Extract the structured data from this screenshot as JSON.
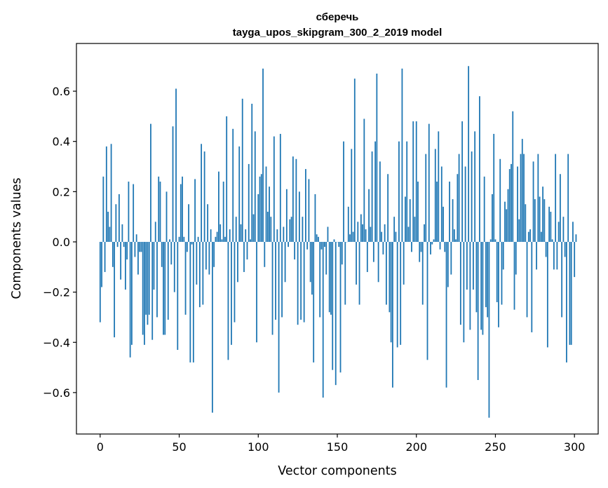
{
  "chart_data": {
    "type": "bar",
    "title": "сберечь",
    "subtitle": "tayga_upos_skipgram_300_2_2019 model",
    "xlabel": "Vector components",
    "ylabel": "Components values",
    "xlim": [
      -15,
      315
    ],
    "ylim": [
      -0.765,
      0.79
    ],
    "xticks": [
      0,
      50,
      100,
      150,
      200,
      250,
      300
    ],
    "yticks": [
      -0.6,
      -0.4,
      -0.2,
      0.0,
      0.2,
      0.4,
      0.6
    ],
    "ytick_labels": [
      "−0.6",
      "−0.4",
      "−0.2",
      "0.0",
      "0.2",
      "0.4",
      "0.6"
    ],
    "grid": false,
    "bar_color": "#1f77b4",
    "values": [
      -0.32,
      -0.18,
      0.26,
      -0.12,
      0.38,
      0.12,
      0.06,
      0.39,
      -0.1,
      -0.38,
      0.15,
      -0.02,
      0.19,
      -0.15,
      0.07,
      -0.02,
      -0.19,
      -0.07,
      0.24,
      -0.46,
      -0.41,
      0.23,
      -0.06,
      0.03,
      -0.13,
      -0.04,
      -0.04,
      -0.37,
      -0.41,
      -0.29,
      -0.33,
      -0.29,
      0.47,
      -0.39,
      -0.19,
      0.08,
      -0.3,
      0.26,
      0.24,
      -0.1,
      -0.37,
      -0.37,
      0.2,
      -0.31,
      0.01,
      -0.09,
      0.46,
      -0.2,
      0.61,
      -0.43,
      0.02,
      0.23,
      0.26,
      0.02,
      -0.29,
      -0.04,
      0.15,
      -0.48,
      -0.01,
      -0.48,
      0.25,
      -0.17,
      0.02,
      -0.26,
      0.39,
      -0.25,
      0.36,
      -0.11,
      0.15,
      -0.13,
      0.05,
      -0.68,
      -0.1,
      0.02,
      0.04,
      0.28,
      0.07,
      0.01,
      0.24,
      0.02,
      0.5,
      -0.47,
      0.05,
      -0.41,
      0.45,
      -0.32,
      0.1,
      -0.16,
      0.38,
      0.07,
      0.57,
      -0.12,
      0.05,
      -0.07,
      0.31,
      0.01,
      0.55,
      0.11,
      0.44,
      -0.4,
      0.19,
      0.26,
      0.27,
      0.69,
      -0.1,
      0.3,
      0.12,
      0.22,
      0.1,
      -0.37,
      0.42,
      -0.31,
      0.05,
      -0.6,
      0.43,
      -0.3,
      0.06,
      -0.16,
      0.21,
      -0.02,
      0.09,
      0.1,
      0.34,
      -0.07,
      0.33,
      -0.33,
      0.2,
      -0.31,
      0.1,
      -0.32,
      0.29,
      -0.03,
      0.25,
      -0.16,
      -0.21,
      -0.48,
      0.19,
      0.03,
      0.02,
      -0.3,
      -0.03,
      -0.62,
      -0.02,
      -0.13,
      0.06,
      -0.28,
      -0.29,
      -0.51,
      0.01,
      -0.57,
      0.0,
      -0.02,
      -0.52,
      -0.09,
      0.4,
      -0.25,
      0.0,
      0.14,
      0.03,
      0.37,
      0.04,
      0.65,
      -0.17,
      0.08,
      -0.25,
      0.11,
      0.07,
      0.49,
      0.05,
      -0.12,
      0.21,
      0.06,
      0.36,
      -0.08,
      0.4,
      0.67,
      -0.16,
      0.32,
      0.04,
      -0.05,
      0.07,
      -0.25,
      0.27,
      -0.28,
      -0.4,
      -0.58,
      0.1,
      0.04,
      -0.42,
      0.4,
      -0.41,
      0.69,
      -0.17,
      0.18,
      0.4,
      0.06,
      0.17,
      -0.04,
      0.48,
      0.1,
      0.48,
      0.24,
      -0.08,
      -0.04,
      -0.25,
      0.07,
      0.35,
      -0.47,
      0.47,
      -0.05,
      -0.01,
      0.01,
      0.37,
      0.24,
      0.44,
      -0.03,
      0.3,
      0.14,
      -0.04,
      -0.58,
      -0.18,
      0.24,
      -0.13,
      0.17,
      0.05,
      0.01,
      0.27,
      0.35,
      -0.33,
      0.48,
      -0.4,
      0.3,
      -0.19,
      0.7,
      -0.35,
      0.36,
      -0.19,
      0.44,
      -0.28,
      -0.55,
      0.58,
      -0.35,
      -0.37,
      0.26,
      -0.26,
      -0.3,
      -0.7,
      0.01,
      0.19,
      0.43,
      0.01,
      -0.24,
      -0.34,
      0.33,
      -0.25,
      -0.11,
      0.16,
      0.13,
      0.21,
      0.29,
      0.31,
      0.52,
      -0.27,
      -0.13,
      0.3,
      0.09,
      0.35,
      0.41,
      0.35,
      0.15,
      -0.3,
      0.04,
      0.05,
      -0.36,
      0.32,
      0.17,
      -0.11,
      0.35,
      0.18,
      0.04,
      0.22,
      0.17,
      -0.06,
      -0.42,
      0.14,
      0.12,
      0.01,
      -0.11,
      0.35,
      -0.11,
      0.08,
      0.27,
      -0.3,
      0.1,
      -0.06,
      -0.48,
      0.35,
      -0.41,
      -0.41,
      0.08,
      -0.14,
      0.03
    ]
  }
}
